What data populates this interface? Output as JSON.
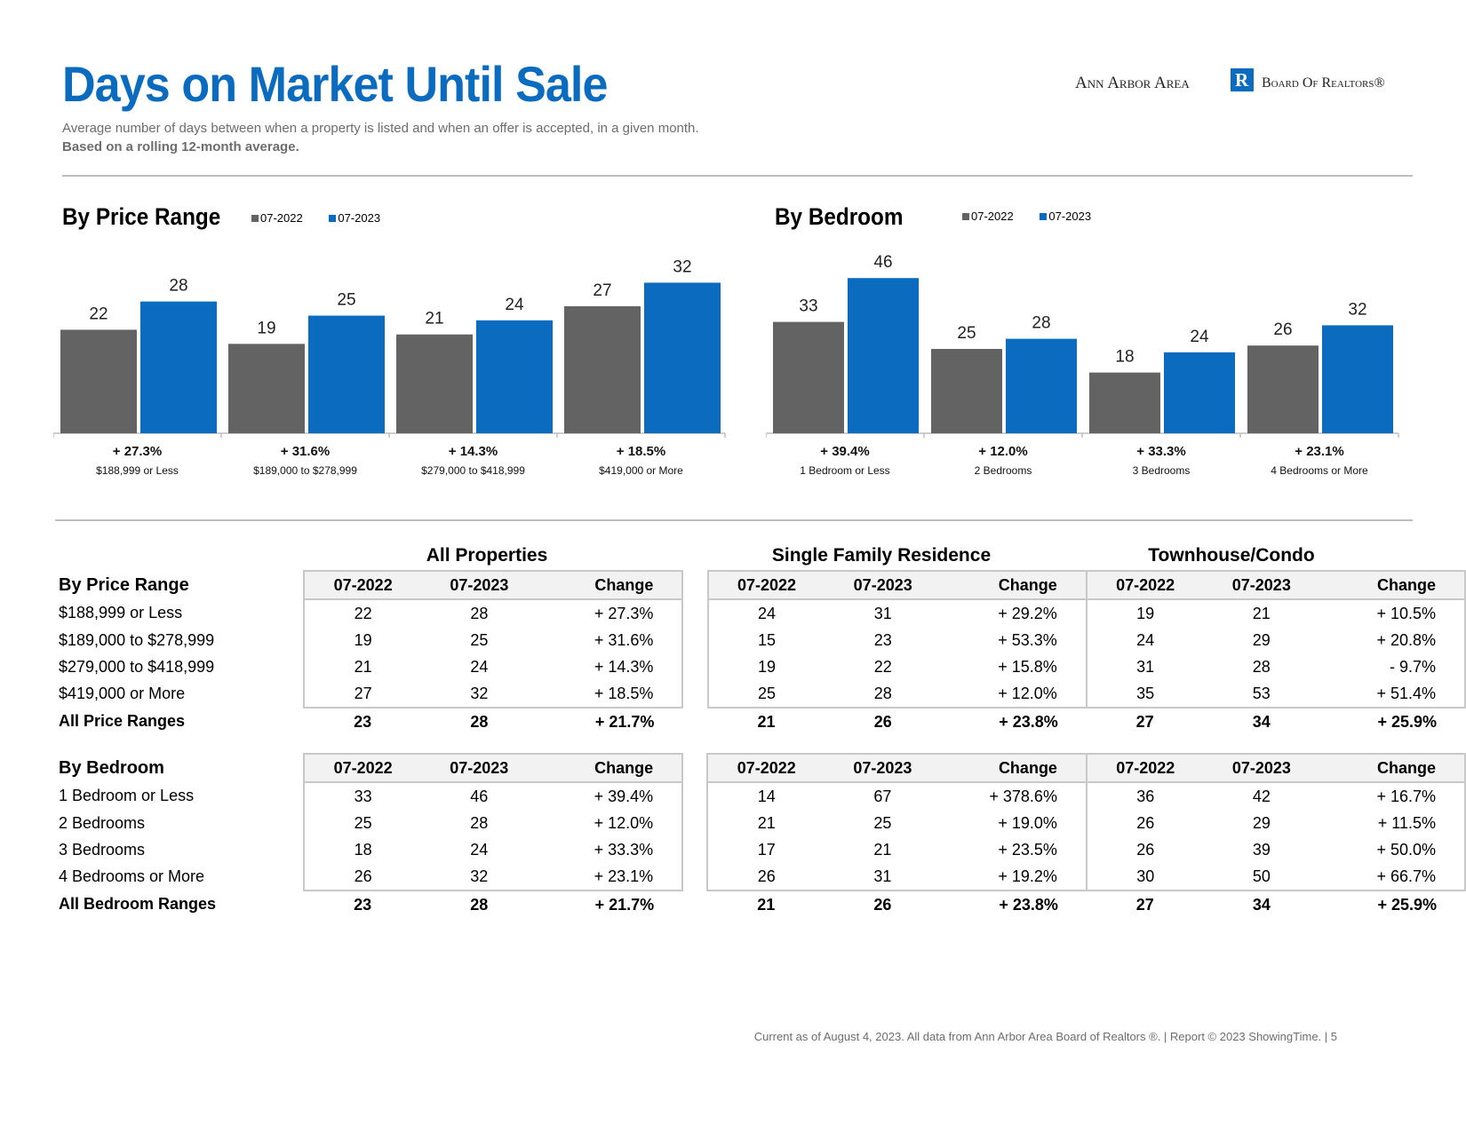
{
  "header": {
    "title": "Days on Market Until Sale",
    "subtitle": "Average number of days between when a property is listed and when an offer is accepted, in a given month.",
    "subtitle_bold": "Based on a rolling 12-month average.",
    "logo_left": "Ann Arbor Area",
    "logo_mark": "R",
    "logo_right": "Board Of Realtors®"
  },
  "colors": {
    "prev": "#636363",
    "curr": "#0b6bbf",
    "title": "#0b6bbf"
  },
  "chart_data": [
    {
      "type": "bar",
      "title": "By Price Range",
      "categories": [
        "$188,999 or Less",
        "$189,000 to $278,999",
        "$279,000 to $418,999",
        "$419,000 or More"
      ],
      "series": [
        {
          "name": "07-2022",
          "values": [
            22,
            19,
            21,
            27
          ]
        },
        {
          "name": "07-2023",
          "values": [
            28,
            25,
            24,
            32
          ]
        }
      ],
      "changes": [
        "+ 27.3%",
        "+ 31.6%",
        "+ 14.3%",
        "+ 18.5%"
      ],
      "legend_position": "top"
    },
    {
      "type": "bar",
      "title": "By Bedroom",
      "categories": [
        "1 Bedroom or Less",
        "2 Bedrooms",
        "3 Bedrooms",
        "4 Bedrooms or More"
      ],
      "series": [
        {
          "name": "07-2022",
          "values": [
            33,
            25,
            18,
            26
          ]
        },
        {
          "name": "07-2023",
          "values": [
            46,
            28,
            24,
            32
          ]
        }
      ],
      "changes": [
        "+ 39.4%",
        "+ 12.0%",
        "+ 33.3%",
        "+ 23.1%"
      ],
      "legend_position": "top"
    }
  ],
  "tables": {
    "sections": [
      "All Properties",
      "Single Family Residence",
      "Townhouse/Condo"
    ],
    "col_headers": [
      "07-2022",
      "07-2023",
      "Change"
    ],
    "price": {
      "title": "By Price Range",
      "rows": [
        {
          "label": "$188,999 or Less",
          "values": [
            "22",
            "28",
            "+ 27.3%",
            "24",
            "31",
            "+ 29.2%",
            "19",
            "21",
            "+ 10.5%"
          ]
        },
        {
          "label": "$189,000 to $278,999",
          "values": [
            "19",
            "25",
            "+ 31.6%",
            "15",
            "23",
            "+ 53.3%",
            "24",
            "29",
            "+ 20.8%"
          ]
        },
        {
          "label": "$279,000 to $418,999",
          "values": [
            "21",
            "24",
            "+ 14.3%",
            "19",
            "22",
            "+ 15.8%",
            "31",
            "28",
            "- 9.7%"
          ]
        },
        {
          "label": "$419,000 or More",
          "values": [
            "27",
            "32",
            "+ 18.5%",
            "25",
            "28",
            "+ 12.0%",
            "35",
            "53",
            "+ 51.4%"
          ]
        }
      ],
      "total": {
        "label": "All Price Ranges",
        "values": [
          "23",
          "28",
          "+ 21.7%",
          "21",
          "26",
          "+ 23.8%",
          "27",
          "34",
          "+ 25.9%"
        ]
      }
    },
    "bedroom": {
      "title": "By Bedroom",
      "rows": [
        {
          "label": "1 Bedroom or Less",
          "values": [
            "33",
            "46",
            "+ 39.4%",
            "14",
            "67",
            "+ 378.6%",
            "36",
            "42",
            "+ 16.7%"
          ]
        },
        {
          "label": "2 Bedrooms",
          "values": [
            "25",
            "28",
            "+ 12.0%",
            "21",
            "25",
            "+ 19.0%",
            "26",
            "29",
            "+ 11.5%"
          ]
        },
        {
          "label": "3 Bedrooms",
          "values": [
            "18",
            "24",
            "+ 33.3%",
            "17",
            "21",
            "+ 23.5%",
            "26",
            "39",
            "+ 50.0%"
          ]
        },
        {
          "label": "4 Bedrooms or More",
          "values": [
            "26",
            "32",
            "+ 23.1%",
            "26",
            "31",
            "+ 19.2%",
            "30",
            "50",
            "+ 66.7%"
          ]
        }
      ],
      "total": {
        "label": "All Bedroom Ranges",
        "values": [
          "23",
          "28",
          "+ 21.7%",
          "21",
          "26",
          "+ 23.8%",
          "27",
          "34",
          "+ 25.9%"
        ]
      }
    }
  },
  "footer": "Current as of August 4, 2023. All data from Ann Arbor Area Board of Realtors ®.  |  Report © 2023 ShowingTime.  |  5"
}
